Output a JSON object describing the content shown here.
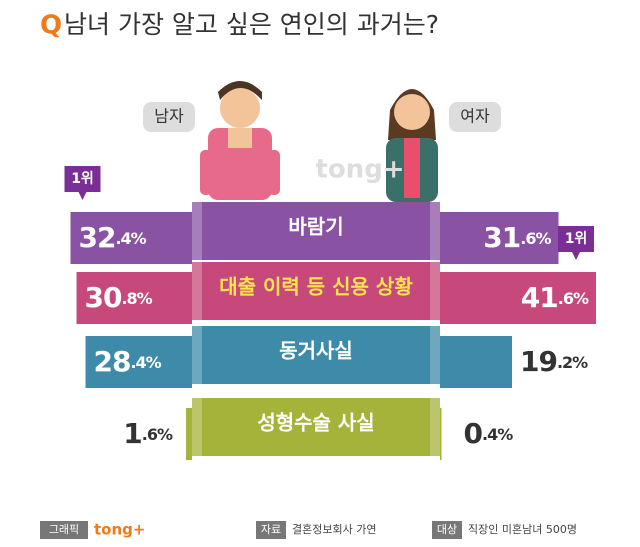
{
  "chart_data": {
    "type": "bar",
    "title_mark": "Q",
    "title": "남녀 가장 알고 싶은 연인의 과거는?",
    "categories": [
      "바람기",
      "대출 이력 등 신용 상황",
      "동거사실",
      "성형수술 사실"
    ],
    "colors": [
      "#8a52a3",
      "#c7487a",
      "#3d8ba8",
      "#a5b33b"
    ],
    "series": [
      {
        "name": "남자",
        "values": [
          32.4,
          30.8,
          28.4,
          1.6
        ],
        "value_labels": [
          "32.4%",
          "30.8%",
          "28.4%",
          "1.6%"
        ],
        "rank_label": "1위"
      },
      {
        "name": "여자",
        "values": [
          31.6,
          41.6,
          19.2,
          0.4
        ],
        "value_labels": [
          "31.6%",
          "41.6%",
          "19.2%",
          "0.4%"
        ],
        "rank_label": "1위"
      }
    ],
    "watermark": "tong+",
    "footer": {
      "graphic_tag": "그래픽",
      "brand": "tong+",
      "source_tag": "자료",
      "source": "결혼정보회사 가연",
      "target_tag": "대상",
      "target": "직장인 미혼남녀 500명"
    }
  }
}
